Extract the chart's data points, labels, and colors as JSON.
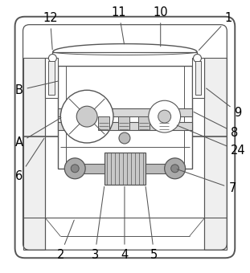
{
  "fig_width": 3.11,
  "fig_height": 3.4,
  "dpi": 100,
  "bg_color": "#ffffff",
  "lc": "#555555",
  "lw": 0.8,
  "label_fontsize": 10.5
}
